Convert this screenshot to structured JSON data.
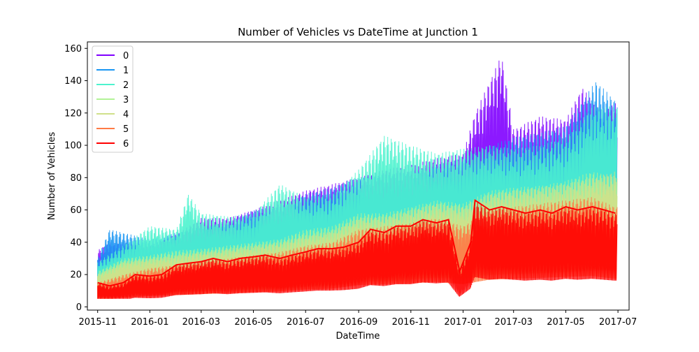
{
  "chart_data": {
    "type": "line",
    "title": "Number of Vehicles vs DateTime at Junction 1",
    "xlabel": "DateTime",
    "ylabel": "Number of Vehicles",
    "xlim": [
      "2015-10-20",
      "2017-07-14"
    ],
    "ylim": [
      -2,
      164
    ],
    "x_ticks": [
      {
        "label": "2015-11",
        "date": "2015-11-01"
      },
      {
        "label": "2016-01",
        "date": "2016-01-01"
      },
      {
        "label": "2016-03",
        "date": "2016-03-01"
      },
      {
        "label": "2016-05",
        "date": "2016-05-01"
      },
      {
        "label": "2016-07",
        "date": "2016-07-01"
      },
      {
        "label": "2016-09",
        "date": "2016-09-01"
      },
      {
        "label": "2016-11",
        "date": "2016-11-01"
      },
      {
        "label": "2017-01",
        "date": "2017-01-01"
      },
      {
        "label": "2017-03",
        "date": "2017-03-01"
      },
      {
        "label": "2017-05",
        "date": "2017-05-01"
      },
      {
        "label": "2017-07",
        "date": "2017-07-01"
      }
    ],
    "y_ticks": [
      0,
      20,
      40,
      60,
      80,
      100,
      120,
      140,
      160
    ],
    "grid": false,
    "legend": {
      "position": "top-left"
    },
    "series": [
      {
        "name": "0",
        "color": "#8000ff",
        "values": [
          [
            "2015-11-01",
            35
          ],
          [
            "2015-11-15",
            40
          ],
          [
            "2016-01-01",
            38
          ],
          [
            "2016-02-01",
            45
          ],
          [
            "2016-03-01",
            55
          ],
          [
            "2016-04-01",
            55
          ],
          [
            "2016-05-01",
            60
          ],
          [
            "2016-06-01",
            66
          ],
          [
            "2016-07-01",
            72
          ],
          [
            "2016-08-01",
            76
          ],
          [
            "2016-09-01",
            80
          ],
          [
            "2016-10-01",
            85
          ],
          [
            "2016-11-01",
            88
          ],
          [
            "2016-12-01",
            92
          ],
          [
            "2017-01-01",
            95
          ],
          [
            "2017-01-15",
            120
          ],
          [
            "2017-02-15",
            156
          ],
          [
            "2017-03-01",
            110
          ],
          [
            "2017-04-01",
            118
          ],
          [
            "2017-05-01",
            116
          ],
          [
            "2017-05-20",
            136
          ],
          [
            "2017-06-10",
            122
          ],
          [
            "2017-06-28",
            126
          ]
        ]
      },
      {
        "name": "1",
        "color": "#1996f3",
        "values": [
          [
            "2015-11-01",
            30
          ],
          [
            "2015-11-15",
            48
          ],
          [
            "2016-01-01",
            42
          ],
          [
            "2016-02-01",
            46
          ],
          [
            "2016-03-01",
            50
          ],
          [
            "2016-04-01",
            52
          ],
          [
            "2016-05-01",
            60
          ],
          [
            "2016-06-01",
            62
          ],
          [
            "2016-07-01",
            70
          ],
          [
            "2016-08-01",
            74
          ],
          [
            "2016-09-01",
            80
          ],
          [
            "2016-10-01",
            82
          ],
          [
            "2016-11-01",
            84
          ],
          [
            "2016-12-01",
            88
          ],
          [
            "2017-01-01",
            92
          ],
          [
            "2017-02-01",
            100
          ],
          [
            "2017-03-01",
            105
          ],
          [
            "2017-04-01",
            108
          ],
          [
            "2017-05-01",
            112
          ],
          [
            "2017-06-05",
            140
          ],
          [
            "2017-06-28",
            128
          ]
        ]
      },
      {
        "name": "2",
        "color": "#4df3ce",
        "values": [
          [
            "2015-11-01",
            28
          ],
          [
            "2015-12-01",
            38
          ],
          [
            "2016-01-01",
            50
          ],
          [
            "2016-02-01",
            48
          ],
          [
            "2016-02-15",
            70
          ],
          [
            "2016-03-01",
            58
          ],
          [
            "2016-04-01",
            56
          ],
          [
            "2016-05-01",
            58
          ],
          [
            "2016-06-01",
            76
          ],
          [
            "2016-07-01",
            68
          ],
          [
            "2016-08-01",
            70
          ],
          [
            "2016-09-01",
            85
          ],
          [
            "2016-10-01",
            106
          ],
          [
            "2016-11-01",
            100
          ],
          [
            "2016-12-01",
            95
          ],
          [
            "2017-01-01",
            98
          ],
          [
            "2017-02-01",
            100
          ],
          [
            "2017-03-01",
            98
          ],
          [
            "2017-04-01",
            100
          ],
          [
            "2017-05-01",
            105
          ],
          [
            "2017-06-01",
            124
          ],
          [
            "2017-06-28",
            124
          ]
        ]
      },
      {
        "name": "3",
        "color": "#b2f396",
        "values": [
          [
            "2015-11-01",
            22
          ],
          [
            "2015-12-01",
            30
          ],
          [
            "2016-01-01",
            32
          ],
          [
            "2016-02-01",
            35
          ],
          [
            "2016-03-01",
            36
          ],
          [
            "2016-04-01",
            38
          ],
          [
            "2016-05-01",
            40
          ],
          [
            "2016-06-01",
            42
          ],
          [
            "2016-07-01",
            48
          ],
          [
            "2016-08-01",
            50
          ],
          [
            "2016-09-01",
            58
          ],
          [
            "2016-10-01",
            58
          ],
          [
            "2016-11-01",
            62
          ],
          [
            "2016-12-01",
            66
          ],
          [
            "2017-01-01",
            64
          ],
          [
            "2017-02-01",
            72
          ],
          [
            "2017-03-01",
            74
          ],
          [
            "2017-04-01",
            75
          ],
          [
            "2017-05-01",
            78
          ],
          [
            "2017-06-01",
            84
          ],
          [
            "2017-06-28",
            80
          ]
        ]
      },
      {
        "name": "4",
        "color": "#d0e08a",
        "values": [
          [
            "2015-11-01",
            20
          ],
          [
            "2015-12-01",
            28
          ],
          [
            "2016-01-01",
            30
          ],
          [
            "2016-02-01",
            32
          ],
          [
            "2016-03-01",
            34
          ],
          [
            "2016-04-01",
            36
          ],
          [
            "2016-05-01",
            38
          ],
          [
            "2016-06-01",
            40
          ],
          [
            "2016-07-01",
            44
          ],
          [
            "2016-08-01",
            47
          ],
          [
            "2016-09-01",
            55
          ],
          [
            "2016-10-01",
            56
          ],
          [
            "2016-11-01",
            60
          ],
          [
            "2016-12-01",
            64
          ],
          [
            "2017-01-01",
            62
          ],
          [
            "2017-02-01",
            70
          ],
          [
            "2017-03-01",
            72
          ],
          [
            "2017-04-01",
            74
          ],
          [
            "2017-05-01",
            76
          ],
          [
            "2017-06-01",
            80
          ],
          [
            "2017-06-28",
            84
          ]
        ]
      },
      {
        "name": "5",
        "color": "#ff7a45",
        "values": [
          [
            "2015-11-01",
            15
          ],
          [
            "2015-12-01",
            20
          ],
          [
            "2016-01-01",
            24
          ],
          [
            "2016-02-01",
            26
          ],
          [
            "2016-03-01",
            28
          ],
          [
            "2016-04-01",
            30
          ],
          [
            "2016-05-01",
            32
          ],
          [
            "2016-06-01",
            34
          ],
          [
            "2016-07-01",
            38
          ],
          [
            "2016-08-01",
            40
          ],
          [
            "2016-09-01",
            48
          ],
          [
            "2016-10-01",
            50
          ],
          [
            "2016-11-01",
            52
          ],
          [
            "2016-12-01",
            55
          ],
          [
            "2017-01-01",
            50
          ],
          [
            "2017-02-01",
            60
          ],
          [
            "2017-03-01",
            62
          ],
          [
            "2017-04-01",
            64
          ],
          [
            "2017-05-01",
            66
          ],
          [
            "2017-06-01",
            68
          ],
          [
            "2017-06-28",
            62
          ]
        ]
      },
      {
        "name": "6",
        "color": "#ff0000",
        "values": [
          [
            "2015-11-01",
            15
          ],
          [
            "2015-11-15",
            13
          ],
          [
            "2015-12-01",
            15
          ],
          [
            "2015-12-15",
            20
          ],
          [
            "2016-01-01",
            19
          ],
          [
            "2016-01-15",
            20
          ],
          [
            "2016-02-01",
            26
          ],
          [
            "2016-02-15",
            27
          ],
          [
            "2016-03-01",
            28
          ],
          [
            "2016-03-15",
            30
          ],
          [
            "2016-04-01",
            28
          ],
          [
            "2016-04-15",
            30
          ],
          [
            "2016-05-01",
            31
          ],
          [
            "2016-05-15",
            32
          ],
          [
            "2016-06-01",
            30
          ],
          [
            "2016-06-15",
            32
          ],
          [
            "2016-07-01",
            34
          ],
          [
            "2016-07-15",
            36
          ],
          [
            "2016-08-01",
            36
          ],
          [
            "2016-08-15",
            37
          ],
          [
            "2016-09-01",
            40
          ],
          [
            "2016-09-15",
            48
          ],
          [
            "2016-10-01",
            46
          ],
          [
            "2016-10-15",
            50
          ],
          [
            "2016-11-01",
            50
          ],
          [
            "2016-11-15",
            54
          ],
          [
            "2016-12-01",
            52
          ],
          [
            "2016-12-15",
            54
          ],
          [
            "2016-12-28",
            22
          ],
          [
            "2017-01-10",
            40
          ],
          [
            "2017-01-15",
            66
          ],
          [
            "2017-02-01",
            60
          ],
          [
            "2017-02-15",
            62
          ],
          [
            "2017-03-01",
            60
          ],
          [
            "2017-03-15",
            58
          ],
          [
            "2017-04-01",
            60
          ],
          [
            "2017-04-15",
            58
          ],
          [
            "2017-05-01",
            62
          ],
          [
            "2017-05-15",
            60
          ],
          [
            "2017-06-01",
            62
          ],
          [
            "2017-06-15",
            60
          ],
          [
            "2017-06-28",
            58
          ]
        ]
      }
    ]
  }
}
